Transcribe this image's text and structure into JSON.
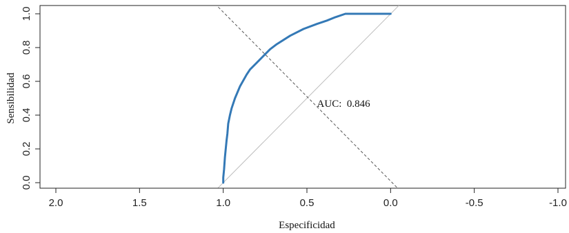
{
  "chart_data": {
    "type": "line",
    "xlabel": "Especificidad",
    "ylabel": "Sensibilidad",
    "x_reversed": true,
    "xlim": [
      2.0,
      -1.0
    ],
    "ylim": [
      0.0,
      1.0
    ],
    "x_ticks": [
      2.0,
      1.5,
      1.0,
      0.5,
      0.0,
      -0.5,
      -1.0
    ],
    "x_tick_labels": [
      "2.0",
      "1.5",
      "1.0",
      "0.5",
      "0.0",
      "-0.5",
      "-1.0"
    ],
    "y_ticks": [
      0.0,
      0.2,
      0.4,
      0.6,
      0.8,
      1.0
    ],
    "y_tick_labels": [
      "0.0",
      "0.2",
      "0.4",
      "0.6",
      "0.8",
      "1.0"
    ],
    "grid": false,
    "series": [
      {
        "color": "#3479b6",
        "style": "solid",
        "x": [
          1.0,
          1.0,
          0.995,
          0.99,
          0.985,
          0.98,
          0.975,
          0.97,
          0.96,
          0.95,
          0.93,
          0.9,
          0.86,
          0.84,
          0.8,
          0.75,
          0.72,
          0.68,
          0.6,
          0.52,
          0.44,
          0.38,
          0.33,
          0.27,
          0.0
        ],
        "y": [
          0.0,
          0.03,
          0.08,
          0.15,
          0.2,
          0.25,
          0.29,
          0.35,
          0.4,
          0.44,
          0.5,
          0.57,
          0.64,
          0.67,
          0.71,
          0.76,
          0.79,
          0.82,
          0.87,
          0.91,
          0.94,
          0.96,
          0.98,
          1.0,
          1.0
        ]
      }
    ],
    "reference_lines": [
      {
        "color": "#bdbdbd",
        "style": "solid",
        "x": [
          1.05,
          -0.05
        ],
        "y": [
          -0.05,
          1.05
        ]
      },
      {
        "color": "#555555",
        "style": "dashed",
        "x": [
          1.03,
          -0.04
        ],
        "y": [
          1.04,
          -0.03
        ]
      }
    ],
    "annotations": [
      {
        "text": "AUC:  0.846",
        "x": 0.44,
        "y": 0.45
      }
    ]
  }
}
